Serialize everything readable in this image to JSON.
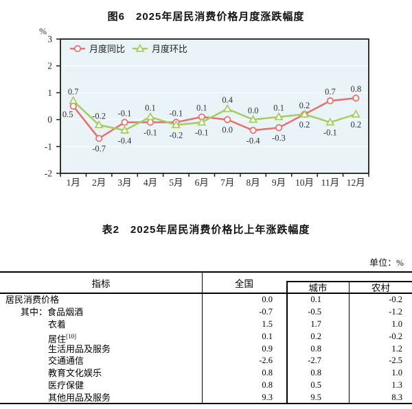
{
  "figure": {
    "title": "图6　2025年居民消费价格月度涨跌幅度",
    "y_axis_unit": "%",
    "chart_data": {
      "type": "line",
      "title": "图6　2025年居民消费价格月度涨跌幅度",
      "categories": [
        "1月",
        "2月",
        "3月",
        "4月",
        "5月",
        "6月",
        "7月",
        "8月",
        "9月",
        "10月",
        "11月",
        "12月"
      ],
      "series": [
        {
          "name": "月度同比",
          "color": "#e87170",
          "marker": "circle",
          "values": [
            0.5,
            -0.7,
            -0.1,
            -0.1,
            -0.1,
            0.1,
            0.0,
            -0.4,
            -0.3,
            0.2,
            0.7,
            0.8
          ],
          "label_pos": [
            "below-left",
            "below",
            "above",
            "below",
            "above",
            "above",
            "below",
            "below",
            "below",
            "below",
            "above",
            "above"
          ]
        },
        {
          "name": "月度环比",
          "color": "#a5cd62",
          "marker": "triangle",
          "values": [
            0.7,
            -0.2,
            -0.4,
            0.1,
            -0.2,
            -0.1,
            0.4,
            0.0,
            0.1,
            0.2,
            -0.1,
            0.2
          ],
          "label_pos": [
            "above",
            "above",
            "below",
            "above",
            "below",
            "below",
            "above",
            "above",
            "above",
            "above",
            "below",
            "below"
          ]
        }
      ],
      "ylabel": "%",
      "ylim": [
        -2,
        3
      ],
      "yticks": [
        3,
        2,
        1,
        0,
        -1,
        -2
      ],
      "grid": true,
      "legend_position": "top-left",
      "plot_bg": "#eaf3f7",
      "grid_color": "#f7fbfd"
    }
  },
  "table": {
    "title": "表2　2025年居民消费价格比上年涨跌幅度",
    "unit_label": "单位：%",
    "header": {
      "indicator": "指标",
      "national": "全国",
      "urban": "城市",
      "rural": "农村"
    },
    "rows": [
      {
        "indicator": "居民消费价格",
        "sup": "",
        "indent": 1,
        "national": "0.0",
        "urban": "0.1",
        "rural": "-0.2"
      },
      {
        "indicator": "其中：食品烟酒",
        "sup": "",
        "indent": 2,
        "national": "-0.7",
        "urban": "-0.5",
        "rural": "-1.2"
      },
      {
        "indicator": "衣着",
        "sup": "",
        "indent": 3,
        "national": "1.5",
        "urban": "1.7",
        "rural": "1.0"
      },
      {
        "indicator": "居住",
        "sup": "[10]",
        "indent": 3,
        "national": "0.1",
        "urban": "0.2",
        "rural": "-0.2"
      },
      {
        "indicator": "生活用品及服务",
        "sup": "",
        "indent": 3,
        "national": "0.9",
        "urban": "0.8",
        "rural": "1.2"
      },
      {
        "indicator": "交通通信",
        "sup": "",
        "indent": 3,
        "national": "-2.6",
        "urban": "-2.7",
        "rural": "-2.5"
      },
      {
        "indicator": "教育文化娱乐",
        "sup": "",
        "indent": 3,
        "national": "0.8",
        "urban": "0.8",
        "rural": "1.0"
      },
      {
        "indicator": "医疗保健",
        "sup": "",
        "indent": 3,
        "national": "0.8",
        "urban": "0.5",
        "rural": "1.3"
      },
      {
        "indicator": "其他用品及服务",
        "sup": "",
        "indent": 3,
        "national": "9.3",
        "urban": "9.5",
        "rural": "8.3"
      }
    ]
  }
}
